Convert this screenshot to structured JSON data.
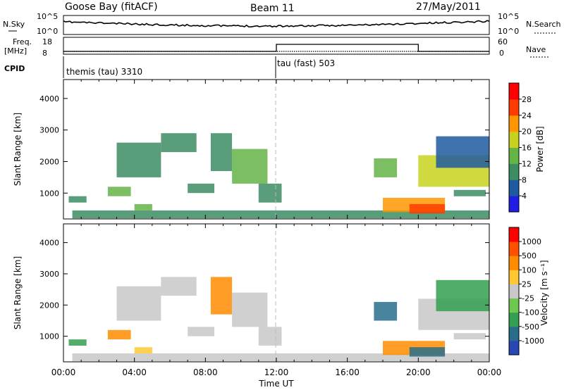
{
  "header": {
    "station": "Goose Bay (fitACF)",
    "beam": "Beam 11",
    "date": "27/May/2011"
  },
  "ancillary": {
    "nsky_label": "N.Sky",
    "nsky_ticks": [
      "10^5",
      "10^0"
    ],
    "nsearch_label": "N.Search",
    "nsearch_ticks": [
      "10^5",
      "10^0"
    ],
    "freq_label_top": "Freq.",
    "freq_label_unit": "[MHz]",
    "freq_ticks": [
      "18",
      "8"
    ],
    "nave_label": "Nave",
    "nave_ticks": [
      "60",
      "0"
    ],
    "cpid_label": "CPID",
    "cpid_segments": [
      {
        "name": "themis (tau) 3310",
        "start_hour": 0,
        "end_hour": 12
      },
      {
        "name": "tau (fast) 503",
        "start_hour": 12,
        "end_hour": 24
      }
    ]
  },
  "chart_data": [
    {
      "type": "heatmap",
      "quantity": "power",
      "ylabel": "Slant Range [km]",
      "yticks": [
        1000,
        2000,
        3000,
        4000
      ],
      "ylim": [
        180,
        4600
      ],
      "xlim": [
        0,
        24
      ],
      "colorbar": {
        "label": "Power [dB]",
        "ticks": [
          "28",
          "24",
          "20",
          "16",
          "12",
          "8",
          "4"
        ],
        "colors": [
          "#1e1ee6",
          "#1e5aa0",
          "#3c8c64",
          "#64b446",
          "#c8d21e",
          "#ff9600",
          "#ff3c00",
          "#ff0000"
        ]
      },
      "regions": [
        {
          "h0": 0.3,
          "h1": 1.3,
          "r0": 700,
          "r1": 900,
          "v": 0.35
        },
        {
          "h0": 2.5,
          "h1": 3.8,
          "r0": 900,
          "r1": 1200,
          "v": 0.4
        },
        {
          "h0": 3.0,
          "h1": 5.5,
          "r0": 1500,
          "r1": 2600,
          "v": 0.3
        },
        {
          "h0": 5.5,
          "h1": 7.5,
          "r0": 2300,
          "r1": 2900,
          "v": 0.25
        },
        {
          "h0": 4.0,
          "h1": 5.0,
          "r0": 450,
          "r1": 650,
          "v": 0.45
        },
        {
          "h0": 7.0,
          "h1": 8.5,
          "r0": 1000,
          "r1": 1300,
          "v": 0.3
        },
        {
          "h0": 8.3,
          "h1": 9.5,
          "r0": 1700,
          "r1": 2900,
          "v": 0.35
        },
        {
          "h0": 9.5,
          "h1": 11.5,
          "r0": 1300,
          "r1": 2400,
          "v": 0.45
        },
        {
          "h0": 11.0,
          "h1": 12.3,
          "r0": 700,
          "r1": 1300,
          "v": 0.3
        },
        {
          "h0": 0.5,
          "h1": 24.0,
          "r0": 200,
          "r1": 450,
          "v": 0.3
        },
        {
          "h0": 17.5,
          "h1": 18.8,
          "r0": 1500,
          "r1": 2100,
          "v": 0.45
        },
        {
          "h0": 18.0,
          "h1": 21.5,
          "r0": 400,
          "r1": 850,
          "v": 0.7
        },
        {
          "h0": 19.5,
          "h1": 21.5,
          "r0": 350,
          "r1": 650,
          "v": 0.9
        },
        {
          "h0": 20.0,
          "h1": 24.0,
          "r0": 1200,
          "r1": 2200,
          "v": 0.55
        },
        {
          "h0": 21.0,
          "h1": 24.0,
          "r0": 1800,
          "r1": 2800,
          "v": 0.2
        },
        {
          "h0": 22.0,
          "h1": 23.8,
          "r0": 900,
          "r1": 1100,
          "v": 0.3
        }
      ]
    },
    {
      "type": "heatmap",
      "quantity": "velocity",
      "ylabel": "Slant Range [km]",
      "xlabel": "Time UT",
      "xticks": [
        "00:00",
        "04:00",
        "08:00",
        "12:00",
        "16:00",
        "20:00",
        "00:00"
      ],
      "yticks": [
        1000,
        2000,
        3000,
        4000
      ],
      "ylim": [
        180,
        4600
      ],
      "xlim": [
        0,
        24
      ],
      "colorbar": {
        "label": "Velocity [m s⁻¹]",
        "ticks": [
          "1000",
          "500",
          "100",
          "25",
          "-25",
          "-100",
          "-500",
          "-1000"
        ],
        "colors": [
          "#2846b4",
          "#286e8c",
          "#32a050",
          "#6ec850",
          "#c8c8c8",
          "#ffc832",
          "#ff8c00",
          "#ff5000",
          "#ff0000"
        ]
      },
      "regions": [
        {
          "h0": 0.3,
          "h1": 1.3,
          "r0": 700,
          "r1": 900,
          "v": 0.2
        },
        {
          "h0": 2.5,
          "h1": 3.8,
          "r0": 900,
          "r1": 1200,
          "v": 0.7
        },
        {
          "h0": 3.0,
          "h1": 5.5,
          "r0": 1500,
          "r1": 2600,
          "v": 0.5
        },
        {
          "h0": 5.5,
          "h1": 7.5,
          "r0": 2300,
          "r1": 2900,
          "v": 0.5
        },
        {
          "h0": 4.0,
          "h1": 5.0,
          "r0": 450,
          "r1": 650,
          "v": 0.6
        },
        {
          "h0": 7.0,
          "h1": 8.5,
          "r0": 1000,
          "r1": 1300,
          "v": 0.55
        },
        {
          "h0": 8.3,
          "h1": 9.5,
          "r0": 1700,
          "r1": 2900,
          "v": 0.75
        },
        {
          "h0": 9.5,
          "h1": 11.5,
          "r0": 1300,
          "r1": 2400,
          "v": 0.5
        },
        {
          "h0": 11.0,
          "h1": 12.3,
          "r0": 700,
          "r1": 1300,
          "v": 0.5
        },
        {
          "h0": 0.5,
          "h1": 24.0,
          "r0": 200,
          "r1": 450,
          "v": 0.5
        },
        {
          "h0": 17.5,
          "h1": 18.8,
          "r0": 1500,
          "r1": 2100,
          "v": 0.15
        },
        {
          "h0": 18.0,
          "h1": 21.5,
          "r0": 400,
          "r1": 850,
          "v": 0.7
        },
        {
          "h0": 19.5,
          "h1": 21.5,
          "r0": 350,
          "r1": 650,
          "v": 0.1
        },
        {
          "h0": 20.0,
          "h1": 24.0,
          "r0": 1200,
          "r1": 2200,
          "v": 0.5
        },
        {
          "h0": 21.0,
          "h1": 24.0,
          "r0": 1800,
          "r1": 2800,
          "v": 0.3
        },
        {
          "h0": 22.0,
          "h1": 23.8,
          "r0": 900,
          "r1": 1100,
          "v": 0.5
        }
      ]
    }
  ]
}
